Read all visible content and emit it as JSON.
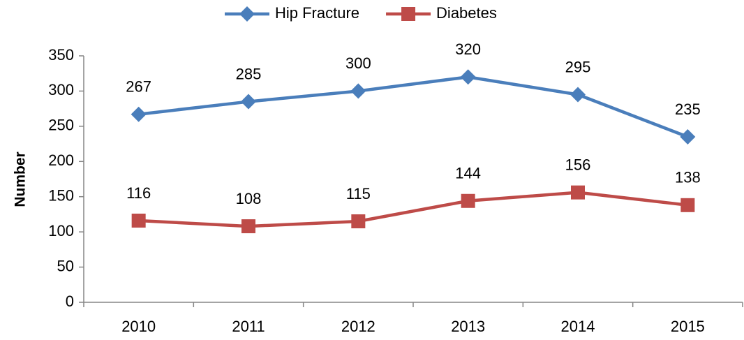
{
  "chart_data": {
    "type": "line",
    "y_label": "Number",
    "categories": [
      "2010",
      "2011",
      "2012",
      "2013",
      "2014",
      "2015"
    ],
    "series": [
      {
        "name": "Hip Fracture",
        "color": "#4a7ebb",
        "marker": "diamond",
        "values": [
          267,
          285,
          300,
          320,
          295,
          235
        ]
      },
      {
        "name": "Diabetes",
        "color": "#be4b48",
        "marker": "square",
        "values": [
          116,
          108,
          115,
          144,
          156,
          138
        ]
      }
    ],
    "ylim": [
      0,
      350
    ],
    "yticks": [
      0,
      50,
      100,
      150,
      200,
      250,
      300,
      350
    ],
    "grid": false,
    "legend": "top",
    "data_labels": true
  }
}
